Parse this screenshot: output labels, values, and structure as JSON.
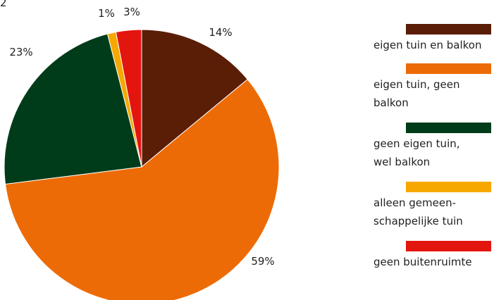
{
  "corner_mark": "2",
  "chart_data": {
    "type": "pie",
    "title": "",
    "slices": [
      {
        "label": "eigen tuin en balkon",
        "value": 14,
        "data_label": "14%",
        "color": "#5a1e07"
      },
      {
        "label": "eigen tuin, geen\nbalkon",
        "value": 59,
        "data_label": "59%",
        "color": "#ed6b06"
      },
      {
        "label": "geen eigen tuin,\nwel balkon",
        "value": 23,
        "data_label": "23%",
        "color": "#003c1a"
      },
      {
        "label": "alleen gemeen-\nschappelijke tuin",
        "value": 1,
        "data_label": "1%",
        "color": "#f6a800"
      },
      {
        "label": "geen buitenruimte",
        "value": 3,
        "data_label": "3%",
        "color": "#e3150f"
      }
    ],
    "legend_position": "right"
  }
}
